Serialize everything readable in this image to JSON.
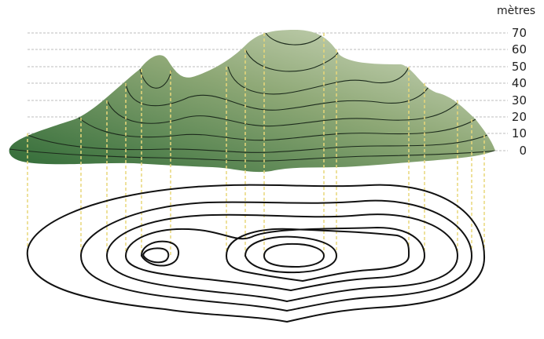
{
  "figure": {
    "unit_label": "mètres",
    "elevation_labels": [
      "70",
      "60",
      "50",
      "40",
      "30",
      "20",
      "10",
      "0"
    ],
    "colors": {
      "hill_dark": "#2f6a36",
      "hill_light": "#cfd8bd",
      "contour": "#1a1a1a",
      "guide_dash": "#bdbdbd",
      "projection_dash": "#e8d77a"
    }
  }
}
